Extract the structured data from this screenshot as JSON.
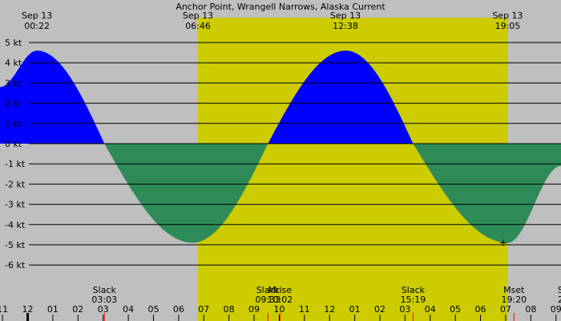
{
  "chart_data": {
    "type": "area",
    "title": "Anchor Point, Wrangell Narrows, Alaska Current",
    "unit": "kt",
    "ylim": [
      -7,
      5.5
    ],
    "y_ticks": [
      {
        "value": 5,
        "label": "5 kt"
      },
      {
        "value": 4,
        "label": "4 kt"
      },
      {
        "value": 3,
        "label": "3 kt"
      },
      {
        "value": 2,
        "label": "2 kt"
      },
      {
        "value": 1,
        "label": "1 kt"
      },
      {
        "value": 0,
        "label": "0 kt"
      },
      {
        "value": -1,
        "label": "-1 kt"
      },
      {
        "value": -2,
        "label": "-2 kt"
      },
      {
        "value": -3,
        "label": "-3 kt"
      },
      {
        "value": -4,
        "label": "-4 kt"
      },
      {
        "value": -5,
        "label": "-5 kt"
      },
      {
        "value": -6,
        "label": "-6 kt"
      }
    ],
    "x_range_hours": [
      -1.1,
      21.2
    ],
    "daylight": {
      "start": 6.77,
      "end": 19.08
    },
    "colors": {
      "night": "#bfbfbf",
      "day": "#cccc00",
      "flood": "#0000ff",
      "ebb": "#2e8b57",
      "gridline": "#000000",
      "marker": "#ff0000"
    },
    "series": [
      {
        "points": [
          {
            "t": -1.1,
            "kt": 2.8
          },
          {
            "t": 0.37,
            "kt": 4.6
          },
          {
            "t": 3.05,
            "kt": 0
          },
          {
            "t": 6.55,
            "kt": -4.9
          },
          {
            "t": 9.55,
            "kt": 0
          },
          {
            "t": 12.65,
            "kt": 4.6
          },
          {
            "t": 15.32,
            "kt": 0
          },
          {
            "t": 19.08,
            "kt": -4.9
          },
          {
            "t": 21.2,
            "kt": -1.1
          }
        ]
      }
    ],
    "top_labels": [
      {
        "t": 0.37,
        "date": "Sep 13",
        "time": "00:22"
      },
      {
        "t": 6.77,
        "date": "Sep 13",
        "time": "06:46"
      },
      {
        "t": 12.63,
        "date": "Sep 13",
        "time": "12:38"
      },
      {
        "t": 19.08,
        "date": "Sep 13",
        "time": "19:05"
      }
    ],
    "events": [
      {
        "t": 3.05,
        "name": "Slack",
        "time": "03:03"
      },
      {
        "t": 9.55,
        "name": "Slack",
        "time": "09:33"
      },
      {
        "t": 10.03,
        "name": "Mrise",
        "time": "10:02"
      },
      {
        "t": 15.32,
        "name": "Slack",
        "time": "15:19"
      },
      {
        "t": 19.33,
        "name": "Mset",
        "time": "19:20"
      },
      {
        "t": 21.2,
        "name": "S",
        "time": "2"
      }
    ],
    "hour_ticks": [
      {
        "t": -1,
        "label": "11"
      },
      {
        "t": 0,
        "label": "12"
      },
      {
        "t": 1,
        "label": "01"
      },
      {
        "t": 2,
        "label": "02"
      },
      {
        "t": 3,
        "label": "03"
      },
      {
        "t": 4,
        "label": "04"
      },
      {
        "t": 5,
        "label": "05"
      },
      {
        "t": 6,
        "label": "06"
      },
      {
        "t": 7,
        "label": "07"
      },
      {
        "t": 8,
        "label": "08"
      },
      {
        "t": 9,
        "label": "09"
      },
      {
        "t": 10,
        "label": "10"
      },
      {
        "t": 11,
        "label": "11"
      },
      {
        "t": 12,
        "label": "12"
      },
      {
        "t": 13,
        "label": "01"
      },
      {
        "t": 14,
        "label": "02"
      },
      {
        "t": 15,
        "label": "03"
      },
      {
        "t": 16,
        "label": "04"
      },
      {
        "t": 17,
        "label": "05"
      },
      {
        "t": 18,
        "label": "06"
      },
      {
        "t": 19,
        "label": "07"
      },
      {
        "t": 20,
        "label": "08"
      },
      {
        "t": 21,
        "label": "09"
      }
    ],
    "midnight_t": 0,
    "crosshair": {
      "t": 18.9,
      "kt": -4.9
    }
  }
}
